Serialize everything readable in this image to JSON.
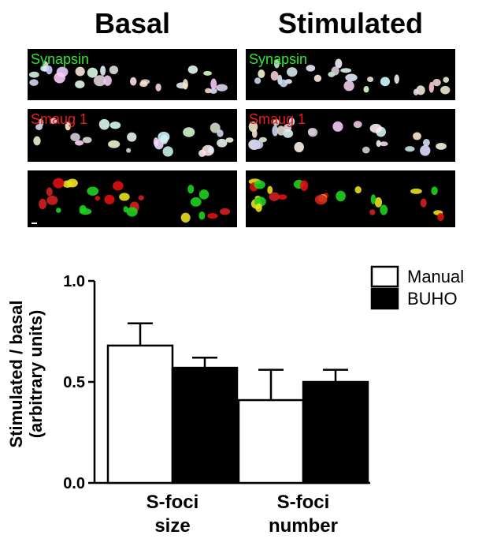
{
  "micrographs": {
    "columns": [
      "Basal",
      "Stimulated"
    ],
    "rows": [
      "Synapsin",
      "Smaug 1"
    ]
  },
  "chart_data": {
    "type": "bar",
    "ylabel": [
      "Stimulated / basal",
      "(arbitrary units)"
    ],
    "categories": [
      "S-foci size",
      "S-foci number"
    ],
    "series": [
      {
        "name": "Manual",
        "color": "#ffffff",
        "values": [
          0.68,
          0.41
        ],
        "errors": [
          0.11,
          0.15
        ]
      },
      {
        "name": "BUHO",
        "color": "#000000",
        "values": [
          0.57,
          0.5
        ],
        "errors": [
          0.05,
          0.06
        ]
      }
    ],
    "ylim": [
      0,
      1
    ],
    "yticks": [
      {
        "value": 0,
        "label": "0.0"
      },
      {
        "value": 0.5,
        "label": "0.5"
      },
      {
        "value": 1,
        "label": "1.0"
      }
    ],
    "legend": "top-right"
  }
}
